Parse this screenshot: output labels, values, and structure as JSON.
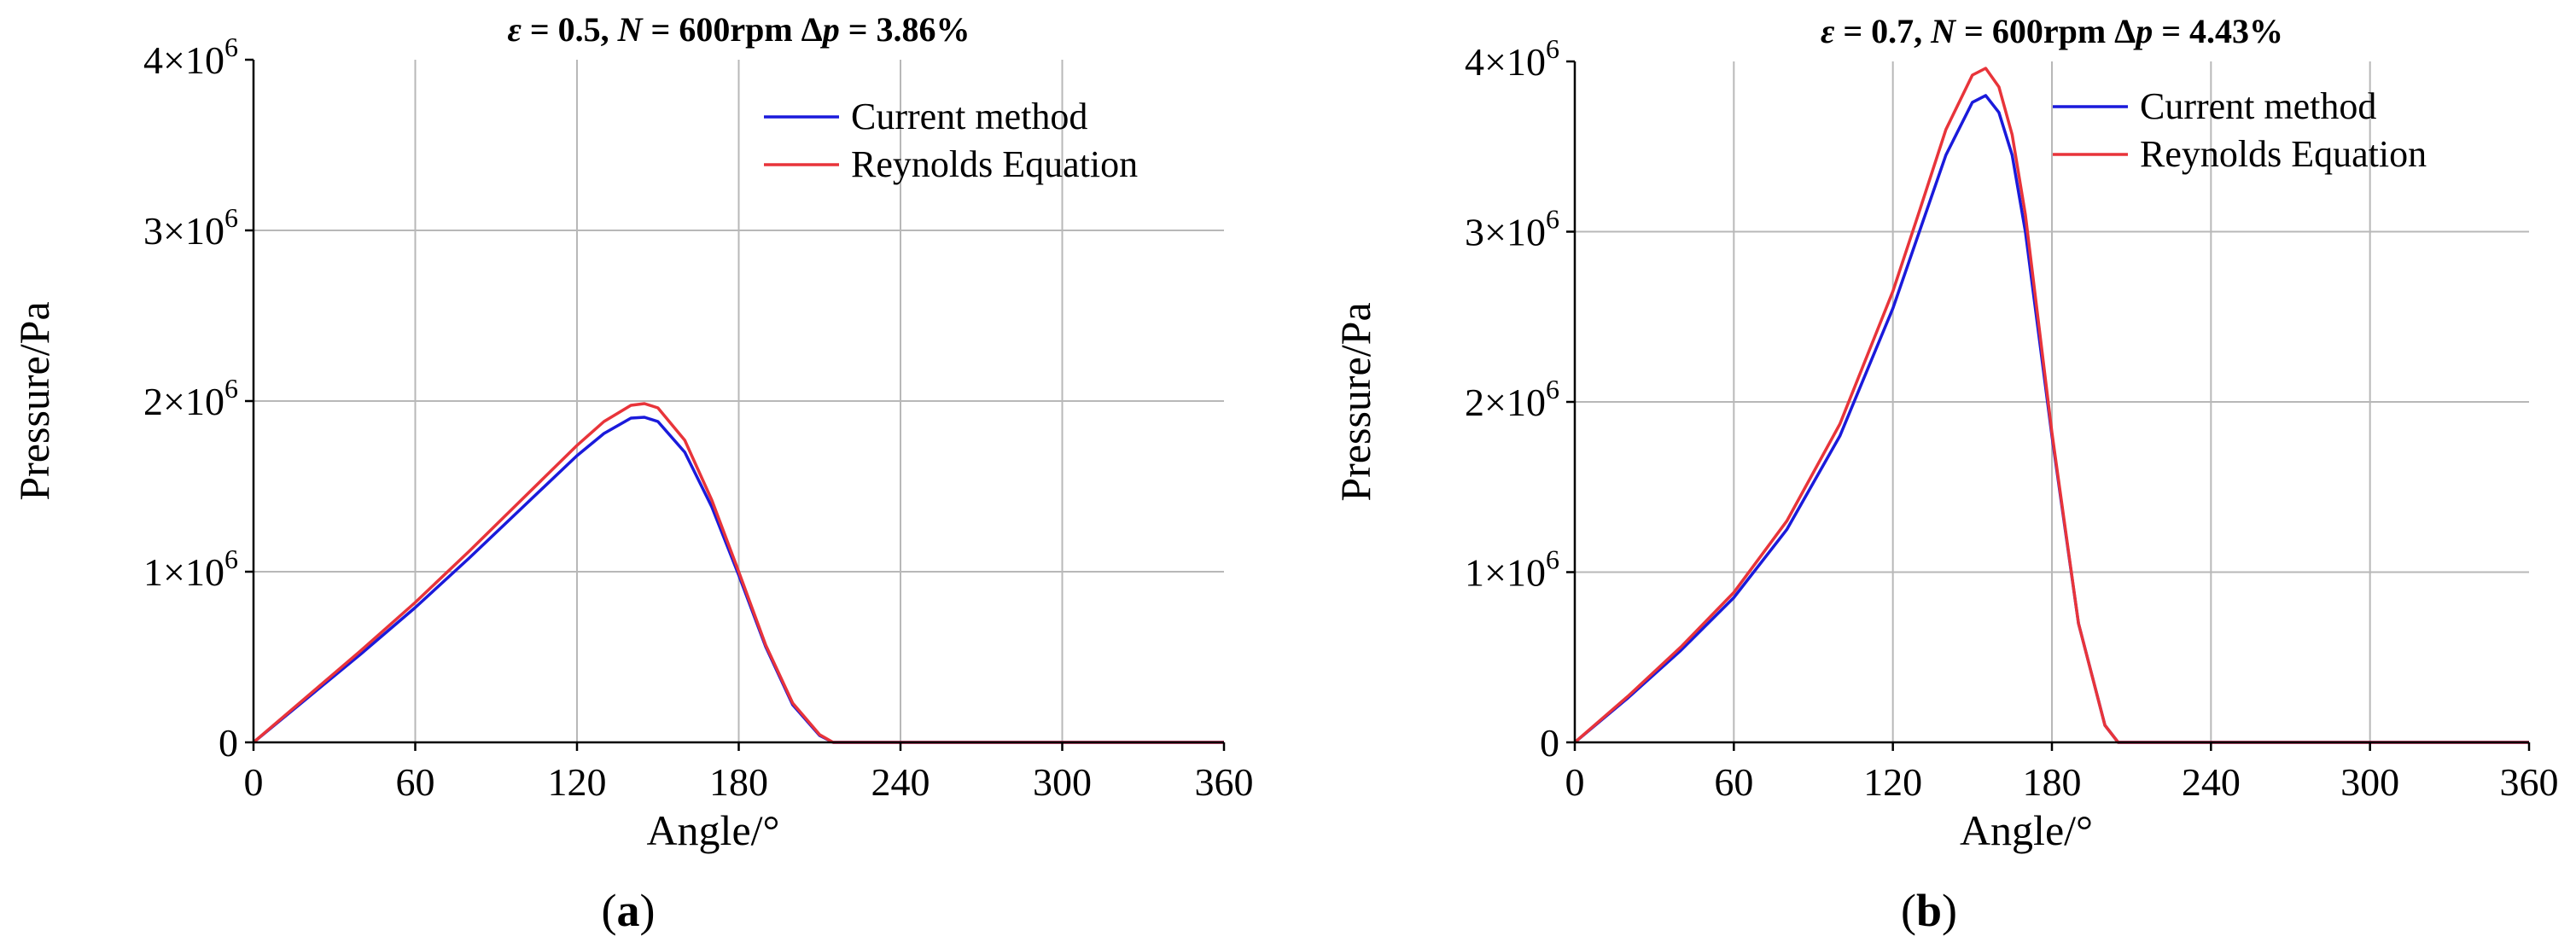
{
  "charts": [
    {
      "type": "line",
      "title_parts": [
        {
          "text": "ε",
          "italic": true
        },
        {
          "text": " = 0.5, ",
          "italic": false
        },
        {
          "text": "N",
          "italic": true
        },
        {
          "text": " = 600rpm Δ",
          "italic": false
        },
        {
          "text": "p",
          "italic": true
        },
        {
          "text": " = 3.86%",
          "italic": false
        }
      ],
      "xlabel": "Angle/°",
      "ylabel": "Pressure/Pa",
      "panel_label_parts": [
        {
          "text": "(",
          "bold": false
        },
        {
          "text": "a",
          "bold": true
        },
        {
          "text": ")",
          "bold": false
        }
      ],
      "xlim": [
        0,
        360
      ],
      "ylim": [
        0,
        4000000
      ],
      "xticks": [
        0,
        60,
        120,
        180,
        240,
        300,
        360
      ],
      "yticks": [
        {
          "value": 0,
          "mantissa": "0",
          "exp": ""
        },
        {
          "value": 1000000,
          "mantissa": "1×10",
          "exp": "6"
        },
        {
          "value": 2000000,
          "mantissa": "2×10",
          "exp": "6"
        },
        {
          "value": 3000000,
          "mantissa": "3×10",
          "exp": "6"
        },
        {
          "value": 4000000,
          "mantissa": "4×10",
          "exp": "6"
        }
      ],
      "grid": true,
      "legend_position": "top-right",
      "series": [
        {
          "name": "Current method",
          "color": "#1a1adb",
          "x": [
            0,
            20,
            40,
            60,
            80,
            100,
            120,
            130,
            140,
            145,
            150,
            160,
            170,
            180,
            190,
            200,
            210,
            215,
            220,
            240,
            300,
            360
          ],
          "y": [
            0,
            260000,
            520000,
            790000,
            1080000,
            1380000,
            1680000,
            1810000,
            1900000,
            1905000,
            1880000,
            1700000,
            1380000,
            980000,
            560000,
            220000,
            40000,
            0,
            0,
            0,
            0,
            0
          ]
        },
        {
          "name": "Reynolds Equation",
          "color": "#e8343a",
          "x": [
            0,
            20,
            40,
            60,
            80,
            100,
            120,
            130,
            140,
            145,
            150,
            160,
            170,
            180,
            190,
            200,
            210,
            215,
            220,
            240,
            300,
            360
          ],
          "y": [
            0,
            270000,
            540000,
            820000,
            1120000,
            1430000,
            1740000,
            1880000,
            1975000,
            1985000,
            1960000,
            1770000,
            1420000,
            1000000,
            570000,
            230000,
            45000,
            0,
            0,
            0,
            0,
            0
          ]
        }
      ]
    },
    {
      "type": "line",
      "title_parts": [
        {
          "text": "ε",
          "italic": true
        },
        {
          "text": " = 0.7, ",
          "italic": false
        },
        {
          "text": "N",
          "italic": true
        },
        {
          "text": " = 600rpm Δ",
          "italic": false
        },
        {
          "text": "p",
          "italic": true
        },
        {
          "text": " = 4.43%",
          "italic": false
        }
      ],
      "xlabel": "Angle/°",
      "ylabel": "Pressure/Pa",
      "panel_label_parts": [
        {
          "text": "(",
          "bold": false
        },
        {
          "text": "b",
          "bold": true
        },
        {
          "text": ")",
          "bold": false
        }
      ],
      "xlim": [
        0,
        360
      ],
      "ylim": [
        0,
        4000000
      ],
      "xticks": [
        0,
        60,
        120,
        180,
        240,
        300,
        360
      ],
      "yticks": [
        {
          "value": 0,
          "mantissa": "0",
          "exp": ""
        },
        {
          "value": 1000000,
          "mantissa": "1×10",
          "exp": "6"
        },
        {
          "value": 2000000,
          "mantissa": "2×10",
          "exp": "6"
        },
        {
          "value": 3000000,
          "mantissa": "3×10",
          "exp": "6"
        },
        {
          "value": 4000000,
          "mantissa": "4×10",
          "exp": "6"
        }
      ],
      "grid": true,
      "legend_position": "top-right",
      "series": [
        {
          "name": "Current method",
          "color": "#1a1adb",
          "x": [
            0,
            20,
            40,
            60,
            80,
            100,
            120,
            130,
            140,
            150,
            155,
            160,
            165,
            170,
            180,
            190,
            200,
            205,
            210,
            240,
            300,
            360
          ],
          "y": [
            0,
            260000,
            540000,
            850000,
            1250000,
            1800000,
            2550000,
            3000000,
            3450000,
            3760000,
            3800000,
            3700000,
            3450000,
            3000000,
            1800000,
            700000,
            100000,
            0,
            0,
            0,
            0,
            0
          ]
        },
        {
          "name": "Reynolds Equation",
          "color": "#e8343a",
          "x": [
            0,
            20,
            40,
            60,
            80,
            100,
            120,
            130,
            140,
            150,
            155,
            160,
            165,
            170,
            180,
            190,
            200,
            205,
            210,
            240,
            300,
            360
          ],
          "y": [
            0,
            270000,
            560000,
            880000,
            1300000,
            1870000,
            2650000,
            3120000,
            3600000,
            3920000,
            3960000,
            3850000,
            3570000,
            3100000,
            1820000,
            700000,
            100000,
            0,
            0,
            0,
            0,
            0
          ]
        }
      ]
    }
  ]
}
